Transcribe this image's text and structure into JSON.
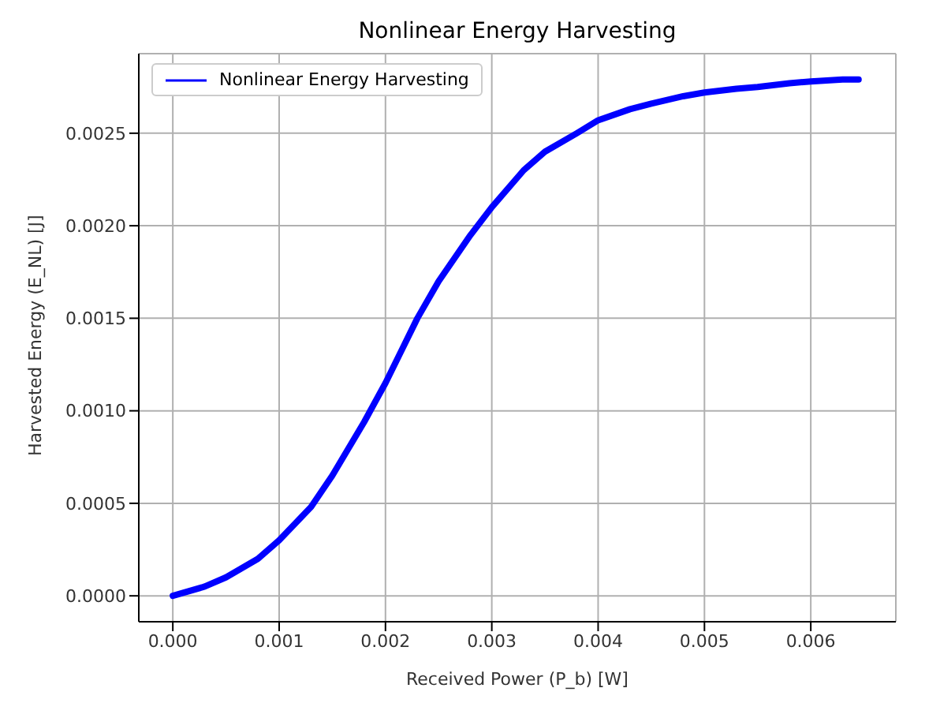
{
  "chart_data": {
    "type": "line",
    "title": "Nonlinear Energy Harvesting",
    "xlabel": "Received Power (P_b) [W]",
    "ylabel": "Harvested Energy (E_NL) [J]",
    "series": [
      {
        "name": "Nonlinear Energy Harvesting",
        "color": "#0000ff",
        "x": [
          0,
          0.0003,
          0.0005,
          0.0008,
          0.001,
          0.0013,
          0.0015,
          0.0018,
          0.002,
          0.0023,
          0.0025,
          0.0028,
          0.003,
          0.0033,
          0.0035,
          0.0038,
          0.004,
          0.0043,
          0.0045,
          0.0048,
          0.005,
          0.0053,
          0.0055,
          0.0058,
          0.006,
          0.0063,
          0.00645
        ],
        "values": [
          0,
          5e-05,
          0.0001,
          0.0002,
          0.0003,
          0.00048,
          0.00065,
          0.00094,
          0.00115,
          0.0015,
          0.0017,
          0.00195,
          0.0021,
          0.0023,
          0.0024,
          0.0025,
          0.00257,
          0.00263,
          0.00266,
          0.0027,
          0.00272,
          0.00274,
          0.00275,
          0.00277,
          0.00278,
          0.00279,
          0.00279
        ]
      }
    ],
    "xlim": [
      -0.00032,
      0.0068
    ],
    "ylim": [
      -0.00014,
      0.00293
    ],
    "xticks": [
      {
        "value": 0,
        "label": "0.000"
      },
      {
        "value": 0.001,
        "label": "0.001"
      },
      {
        "value": 0.002,
        "label": "0.002"
      },
      {
        "value": 0.003,
        "label": "0.003"
      },
      {
        "value": 0.004,
        "label": "0.004"
      },
      {
        "value": 0.005,
        "label": "0.005"
      },
      {
        "value": 0.006,
        "label": "0.006"
      }
    ],
    "yticks": [
      {
        "value": 0,
        "label": "0.0000"
      },
      {
        "value": 0.0005,
        "label": "0.0005"
      },
      {
        "value": 0.001,
        "label": "0.0010"
      },
      {
        "value": 0.0015,
        "label": "0.0015"
      },
      {
        "value": 0.002,
        "label": "0.0020"
      },
      {
        "value": 0.0025,
        "label": "0.0025"
      }
    ],
    "grid": true,
    "legend": "top left",
    "marker": "none",
    "line_style": "solid"
  }
}
